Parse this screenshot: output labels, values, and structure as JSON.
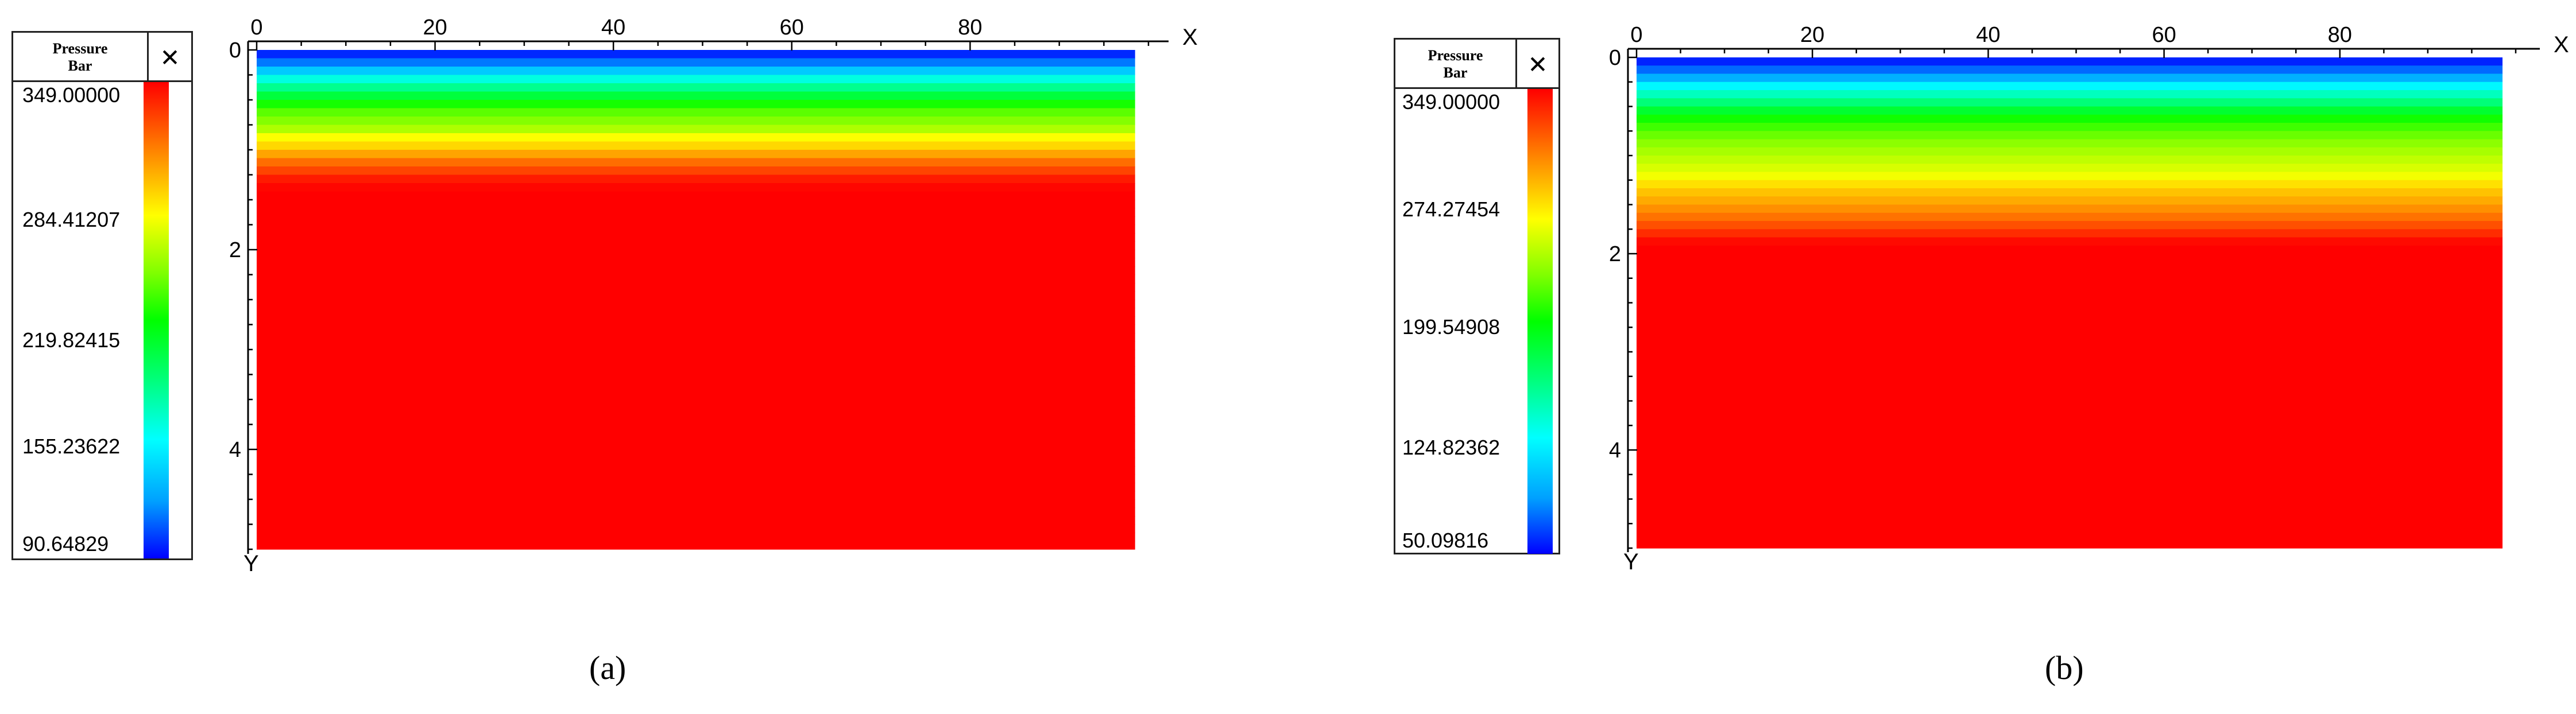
{
  "chart_data": [
    {
      "type": "heatmap",
      "caption": "(a)",
      "legend": {
        "title": "Pressure\nBar",
        "close_glyph": "✕",
        "labels": [
          "349.00000",
          "284.41207",
          "219.82415",
          "155.23622",
          "90.64829"
        ],
        "min": 90.64829,
        "max": 349.0,
        "colors": [
          "#0000ff",
          "#00ffff",
          "#00ff00",
          "#ffff00",
          "#ff8000",
          "#ff0000"
        ]
      },
      "xlabel": "X",
      "ylabel": "Y",
      "x_ticks": [
        "0",
        "20",
        "40",
        "60",
        "80"
      ],
      "y_ticks": [
        "0",
        "2",
        "4"
      ],
      "xlim": [
        0,
        100
      ],
      "ylim": [
        0,
        5
      ],
      "profile": {
        "depth": [
          0,
          0.1,
          0.2,
          0.3,
          0.4,
          0.5,
          0.6,
          0.7,
          0.8,
          0.9,
          1.0,
          1.1,
          1.2,
          1.3,
          1.4,
          5.0
        ],
        "pressure": [
          90.6,
          110,
          130,
          150,
          170,
          190,
          210,
          220,
          230,
          250,
          270,
          300,
          320,
          340,
          349,
          349
        ]
      }
    },
    {
      "type": "heatmap",
      "caption": "(b)",
      "legend": {
        "title": "Pressure\nBar",
        "close_glyph": "✕",
        "labels": [
          "349.00000",
          "274.27454",
          "199.54908",
          "124.82362",
          "50.09816"
        ],
        "min": 50.09816,
        "max": 349.0,
        "colors": [
          "#0000ff",
          "#00ffff",
          "#00ff00",
          "#ffff00",
          "#ff8000",
          "#ff0000"
        ]
      },
      "xlabel": "X",
      "ylabel": "Y",
      "x_ticks": [
        "0",
        "20",
        "40",
        "60",
        "80"
      ],
      "y_ticks": [
        "0",
        "2",
        "4"
      ],
      "xlim": [
        0,
        100
      ],
      "ylim": [
        0,
        5
      ],
      "profile": {
        "depth": [
          0,
          0.15,
          0.3,
          0.45,
          0.6,
          0.75,
          0.9,
          1.05,
          1.2,
          1.35,
          1.5,
          1.65,
          1.8,
          1.9,
          5.0
        ],
        "pressure": [
          50.1,
          80,
          110,
          140,
          170,
          190,
          205,
          215,
          225,
          255,
          275,
          300,
          330,
          349,
          349
        ]
      }
    }
  ]
}
